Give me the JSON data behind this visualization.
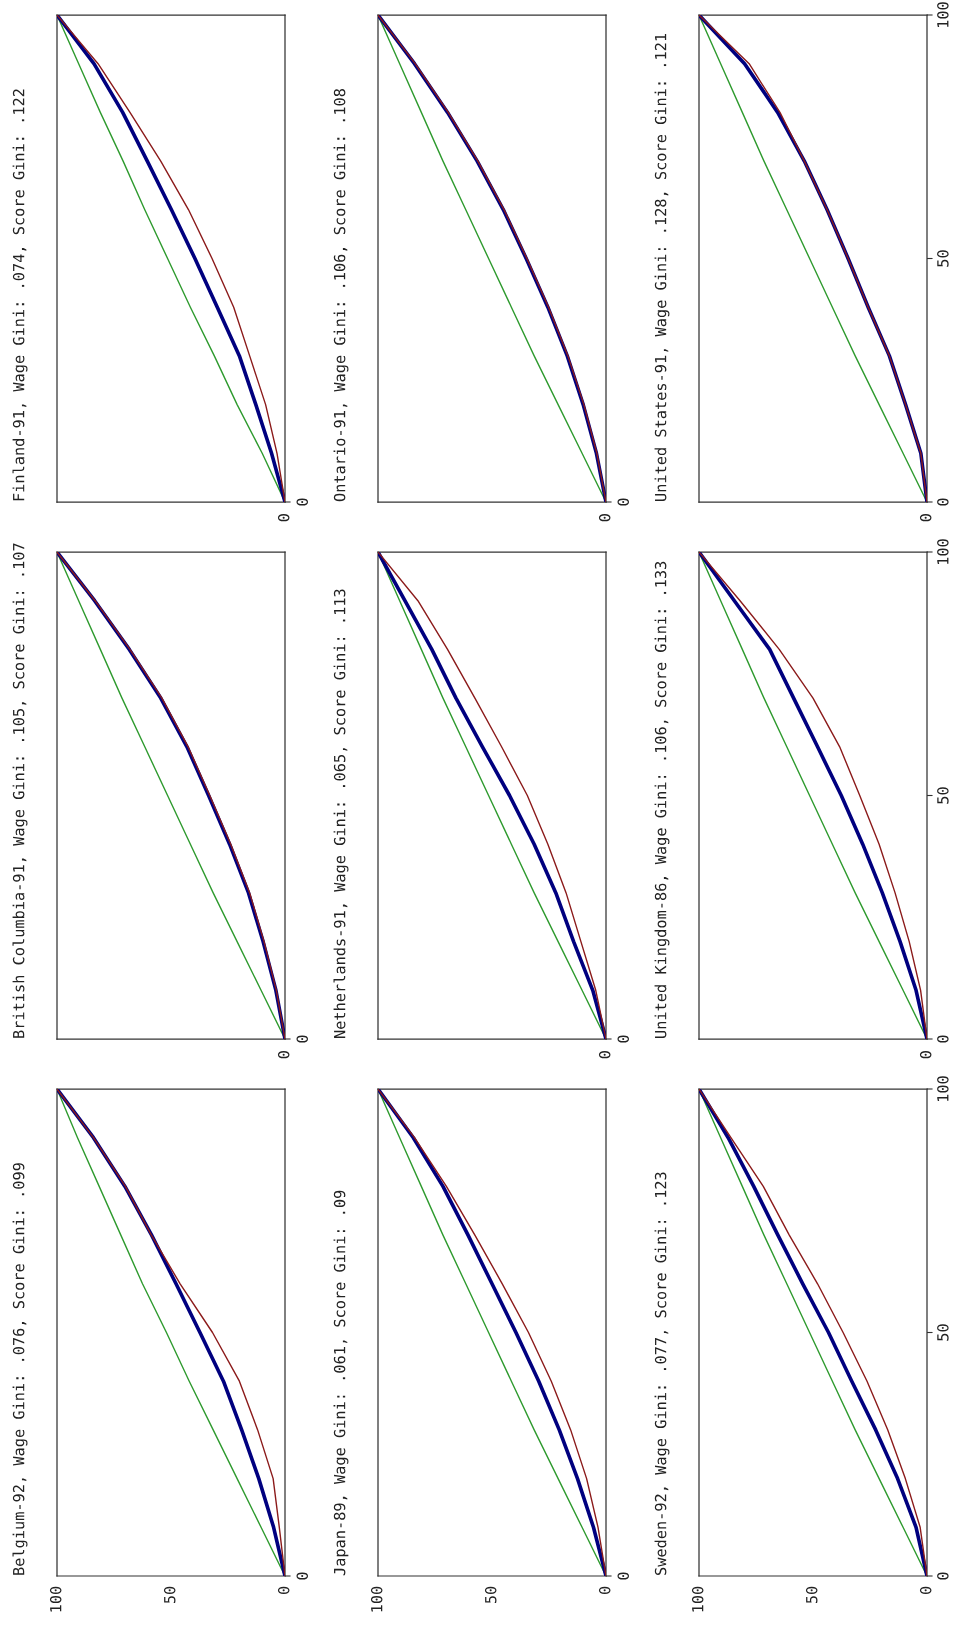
{
  "chart_data": [
    {
      "type": "line",
      "title": "Belgium-92, Wage Gini: .076, Score Gini: .099",
      "xlim": [
        100,
        0
      ],
      "ylim": [
        0,
        100
      ],
      "xticks": [
        100,
        50,
        0
      ],
      "tick_labels": "x",
      "annotations": [
        "0"
      ],
      "series": [
        {
          "color": "#2e9a2e",
          "x": [
            0,
            10.5,
            21,
            31.5,
            42,
            52,
            62.5,
            72,
            81.5,
            91,
            100
          ],
          "values": [
            0,
            10,
            20,
            30,
            40,
            50,
            60,
            70,
            80,
            90,
            100
          ]
        },
        {
          "color": "#00007f",
          "x": [
            0,
            5,
            11.5,
            19,
            27,
            37.3,
            47.8,
            58.5,
            70.2,
            84,
            100
          ],
          "values": [
            0,
            10,
            20,
            30,
            40,
            50,
            60,
            70,
            80,
            90,
            100
          ]
        },
        {
          "color": "#8b1a1a",
          "x": [
            0,
            2.5,
            5.2,
            12,
            20,
            31.8,
            46,
            58.6,
            70,
            84,
            100
          ],
          "values": [
            0,
            10,
            20,
            30,
            40,
            50,
            60,
            70,
            80,
            90,
            100
          ]
        }
      ]
    },
    {
      "type": "line",
      "title": "British Columbia-91, Wage Gini: .105, Score Gini: .107",
      "xlim": [
        100,
        0
      ],
      "ylim": [
        0,
        100
      ],
      "tick_labels": false,
      "annotations": [
        "0",
        "0"
      ],
      "series": [
        {
          "color": "#2e9a2e",
          "x": [
            0,
            10.5,
            21,
            31.5,
            41.5,
            51.5,
            61.5,
            71.5,
            81,
            90.5,
            100
          ],
          "values": [
            0,
            10,
            20,
            30,
            40,
            50,
            60,
            70,
            80,
            90,
            100
          ]
        },
        {
          "color": "#00007f",
          "x": [
            0,
            4,
            9.6,
            16,
            24.3,
            33.5,
            43,
            54.5,
            68.3,
            83.5,
            100
          ],
          "values": [
            0,
            10,
            20,
            30,
            40,
            50,
            60,
            70,
            80,
            90,
            100
          ]
        },
        {
          "color": "#8b1a1a",
          "x": [
            0,
            3.8,
            9.2,
            15.5,
            23.8,
            33,
            42.5,
            54,
            68,
            83.3,
            100
          ],
          "values": [
            0,
            10,
            20,
            30,
            40,
            50,
            60,
            70,
            80,
            90,
            100
          ]
        }
      ]
    },
    {
      "type": "line",
      "title": "Finland-91, Wage Gini: .074, Score Gini: .122",
      "xlim": [
        100,
        0
      ],
      "ylim": [
        0,
        100
      ],
      "tick_labels": false,
      "annotations": [
        "0",
        "0"
      ],
      "series": [
        {
          "color": "#2e9a2e",
          "x": [
            0,
            10,
            21,
            31,
            41.5,
            51.5,
            61.5,
            71,
            81,
            90.5,
            100
          ],
          "values": [
            0,
            10,
            20,
            30,
            40,
            50,
            60,
            70,
            80,
            90,
            100
          ]
        },
        {
          "color": "#00007f",
          "x": [
            0,
            5.9,
            12.8,
            20,
            29.7,
            39.5,
            49.8,
            60.4,
            71.2,
            83.8,
            100
          ],
          "values": [
            0,
            10,
            20,
            30,
            40,
            50,
            60,
            70,
            80,
            90,
            100
          ]
        },
        {
          "color": "#8b1a1a",
          "x": [
            0,
            3.5,
            8.5,
            15.5,
            22.5,
            32,
            42.3,
            54.5,
            68,
            82,
            100
          ],
          "values": [
            0,
            10,
            20,
            30,
            40,
            50,
            60,
            70,
            80,
            90,
            100
          ]
        }
      ]
    },
    {
      "type": "line",
      "title": "Japan-89, Wage Gini: .061, Score Gini: .09",
      "xlim": [
        100,
        0
      ],
      "ylim": [
        0,
        100
      ],
      "xticks": [
        100,
        50,
        0
      ],
      "tick_labels": "x",
      "annotations": [
        "0"
      ],
      "series": [
        {
          "color": "#2e9a2e",
          "x": [
            0,
            10.5,
            21,
            31.5,
            41.5,
            51.5,
            61.5,
            71.5,
            81,
            90.5,
            100
          ],
          "values": [
            0,
            10,
            20,
            30,
            40,
            50,
            60,
            70,
            80,
            90,
            100
          ]
        },
        {
          "color": "#00007f",
          "x": [
            0,
            5.5,
            12.5,
            20.5,
            29.5,
            39.5,
            50,
            60.5,
            71.5,
            84.5,
            100
          ],
          "values": [
            0,
            10,
            20,
            30,
            40,
            50,
            60,
            70,
            80,
            90,
            100
          ]
        },
        {
          "color": "#8b1a1a",
          "x": [
            0,
            3.5,
            8.5,
            15.5,
            24,
            34,
            45.5,
            57.5,
            70,
            84,
            100
          ],
          "values": [
            0,
            10,
            20,
            30,
            40,
            50,
            60,
            70,
            80,
            90,
            100
          ]
        }
      ]
    },
    {
      "type": "line",
      "title": "Netherlands-91, Wage Gini: .065, Score Gini: .113",
      "xlim": [
        100,
        0
      ],
      "ylim": [
        0,
        100
      ],
      "tick_labels": false,
      "annotations": [
        "0",
        "0"
      ],
      "series": [
        {
          "color": "#2e9a2e",
          "x": [
            0,
            10.5,
            21,
            31.5,
            41.5,
            51.5,
            61.5,
            71.5,
            81,
            90.5,
            100
          ],
          "values": [
            0,
            10,
            20,
            30,
            40,
            50,
            60,
            70,
            80,
            90,
            100
          ]
        },
        {
          "color": "#00007f",
          "x": [
            0,
            5.8,
            14.2,
            22,
            31.5,
            42.3,
            54.2,
            65.8,
            76.4,
            88.2,
            100
          ],
          "values": [
            0,
            10,
            20,
            30,
            40,
            50,
            60,
            70,
            80,
            90,
            100
          ]
        },
        {
          "color": "#8b1a1a",
          "x": [
            0,
            4.5,
            11,
            17.5,
            25.5,
            34.5,
            45.8,
            57.5,
            69.5,
            82.5,
            100
          ],
          "values": [
            0,
            10,
            20,
            30,
            40,
            50,
            60,
            70,
            80,
            90,
            100
          ]
        }
      ]
    },
    {
      "type": "line",
      "title": "Ontario-91, Wage Gini: .106, Score Gini: .108",
      "xlim": [
        100,
        0
      ],
      "ylim": [
        0,
        100
      ],
      "tick_labels": false,
      "annotations": [
        "0",
        "0"
      ],
      "series": [
        {
          "color": "#2e9a2e",
          "x": [
            0,
            10.5,
            21,
            31.5,
            41.5,
            51.5,
            61.5,
            71.5,
            81,
            90.5,
            100
          ],
          "values": [
            0,
            10,
            20,
            30,
            40,
            50,
            60,
            70,
            80,
            90,
            100
          ]
        },
        {
          "color": "#00007f",
          "x": [
            0,
            4.2,
            10,
            17,
            25.5,
            35,
            45,
            56.5,
            69.5,
            84,
            100
          ],
          "values": [
            0,
            10,
            20,
            30,
            40,
            50,
            60,
            70,
            80,
            90,
            100
          ]
        },
        {
          "color": "#8b1a1a",
          "x": [
            0,
            4,
            9.7,
            16.7,
            25.2,
            34.7,
            44.7,
            56.2,
            69.2,
            83.7,
            100
          ],
          "values": [
            0,
            10,
            20,
            30,
            40,
            50,
            60,
            70,
            80,
            90,
            100
          ]
        }
      ]
    },
    {
      "type": "line",
      "title": "Sweden-92, Wage Gini: .077, Score Gini: .123",
      "xlim": [
        100,
        0
      ],
      "ylim": [
        0,
        100
      ],
      "xticks": [
        100,
        50,
        0
      ],
      "yticks": [
        0,
        50,
        100
      ],
      "series": [
        {
          "color": "#2e9a2e",
          "x": [
            0,
            10.5,
            21,
            31.5,
            41.5,
            51.5,
            61.5,
            71.5,
            81,
            90.5,
            100
          ],
          "values": [
            0,
            10,
            20,
            30,
            40,
            50,
            60,
            70,
            80,
            90,
            100
          ]
        },
        {
          "color": "#00007f",
          "x": [
            0,
            4.8,
            12.9,
            22.5,
            33,
            43.2,
            54.5,
            65.4,
            76,
            87.2,
            100
          ],
          "values": [
            0,
            10,
            20,
            30,
            40,
            50,
            60,
            70,
            80,
            90,
            100
          ]
        },
        {
          "color": "#8b1a1a",
          "x": [
            0,
            3,
            9.5,
            17.2,
            26.3,
            36.8,
            48,
            60.4,
            71.8,
            86,
            100
          ],
          "values": [
            0,
            10,
            20,
            30,
            40,
            50,
            60,
            70,
            80,
            90,
            100
          ]
        }
      ]
    },
    {
      "type": "line",
      "title": "United Kingdom-86, Wage Gini: .106, Score Gini: .133",
      "xlim": [
        100,
        0
      ],
      "ylim": [
        0,
        100
      ],
      "yticks": [
        0,
        50,
        100
      ],
      "tick_labels": "y",
      "annotations": [
        "0"
      ],
      "series": [
        {
          "color": "#2e9a2e",
          "x": [
            0,
            10.5,
            21,
            31.5,
            41.5,
            51.5,
            61.5,
            71.5,
            81,
            90.5,
            100
          ],
          "values": [
            0,
            10,
            20,
            30,
            40,
            50,
            60,
            70,
            80,
            90,
            100
          ]
        },
        {
          "color": "#00007f",
          "x": [
            0,
            4.8,
            11.8,
            19.6,
            28.2,
            37.6,
            48,
            58.5,
            69,
            84.5,
            100
          ],
          "values": [
            0,
            10,
            20,
            30,
            40,
            50,
            60,
            70,
            80,
            90,
            100
          ]
        },
        {
          "color": "#8b1a1a",
          "x": [
            0,
            2.8,
            7.8,
            14,
            21,
            29.5,
            38.3,
            50,
            64.8,
            82,
            100
          ],
          "values": [
            0,
            10,
            20,
            30,
            40,
            50,
            60,
            70,
            80,
            90,
            100
          ]
        }
      ]
    },
    {
      "type": "line",
      "title": "United States-91, Wage Gini: .128, Score Gini: .121",
      "xlim": [
        100,
        0
      ],
      "ylim": [
        0,
        100
      ],
      "yticks": [
        0,
        50,
        100
      ],
      "tick_labels": "y",
      "annotations": [
        "0"
      ],
      "series": [
        {
          "color": "#2e9a2e",
          "x": [
            0,
            10.5,
            21,
            31.5,
            41.5,
            51.5,
            61.5,
            71.5,
            81,
            90.5,
            100
          ],
          "values": [
            0,
            10,
            20,
            30,
            40,
            50,
            60,
            70,
            80,
            90,
            100
          ]
        },
        {
          "color": "#00007f",
          "x": [
            0,
            2.7,
            9.4,
            16.5,
            25.8,
            34.6,
            43.8,
            53.8,
            65.5,
            80,
            100
          ],
          "values": [
            0,
            10,
            20,
            30,
            40,
            50,
            60,
            70,
            80,
            90,
            100
          ]
        },
        {
          "color": "#8b1a1a",
          "x": [
            0,
            2.7,
            9.4,
            16.5,
            25.8,
            34.6,
            43.8,
            53.8,
            64.5,
            78,
            100
          ],
          "values": [
            0,
            10,
            20,
            30,
            40,
            50,
            60,
            70,
            80,
            90,
            100
          ]
        }
      ]
    }
  ]
}
